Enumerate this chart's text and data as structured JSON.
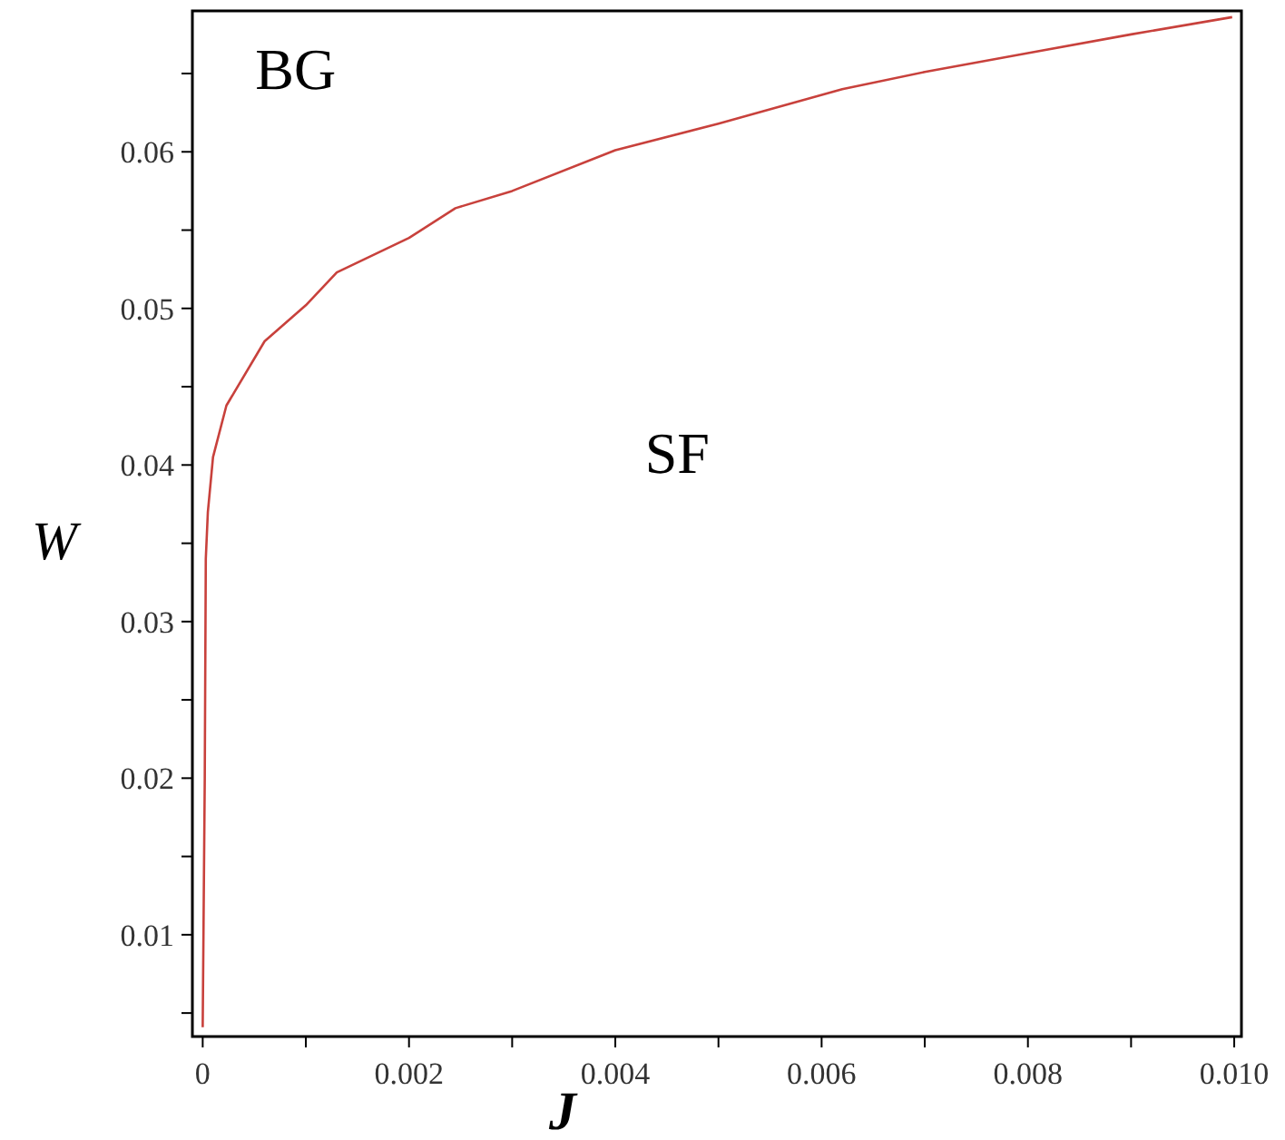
{
  "chart_data": {
    "type": "line",
    "xlabel": "J",
    "ylabel": "W",
    "annotations": [
      "BG",
      "SF"
    ],
    "x": [
      0,
      2e-05,
      3e-05,
      5e-05,
      0.0001,
      0.00023,
      0.0006,
      0.001,
      0.0013,
      0.002,
      0.00245,
      0.003,
      0.004,
      0.005,
      0.0062,
      0.007,
      0.008,
      0.009,
      0.00998
    ],
    "series": [
      {
        "color": "#c8413c",
        "values": [
          0.0041,
          0.02,
          0.034,
          0.037,
          0.0405,
          0.0438,
          0.0479,
          0.0502,
          0.0523,
          0.0545,
          0.0564,
          0.0575,
          0.0601,
          0.0618,
          0.064,
          0.0651,
          0.0663,
          0.0675,
          0.0686
        ]
      }
    ],
    "xlim": [
      -0.0001,
      0.01007
    ],
    "ylim": [
      0.0035,
      0.069
    ],
    "xticks": [
      0,
      {
        "value": 0.001,
        "label": null
      },
      0.002,
      {
        "value": 0.003,
        "label": null
      },
      0.004,
      {
        "value": 0.005,
        "label": null
      },
      0.006,
      {
        "value": 0.007,
        "label": null
      },
      0.008,
      {
        "value": 0.009,
        "label": null
      },
      {
        "value": 0.01,
        "label": "0.010"
      }
    ],
    "yticks": [
      {
        "value": 0.005,
        "label": null
      },
      0.01,
      {
        "value": 0.015,
        "label": null
      },
      0.02,
      {
        "value": 0.025,
        "label": null
      },
      0.03,
      {
        "value": 0.035,
        "label": null
      },
      0.04,
      {
        "value": 0.045,
        "label": null
      },
      0.05,
      {
        "value": 0.055,
        "label": null
      },
      0.06,
      {
        "value": 0.065,
        "label": null
      }
    ],
    "grid": false,
    "marker": "none",
    "line_style": "solid"
  }
}
